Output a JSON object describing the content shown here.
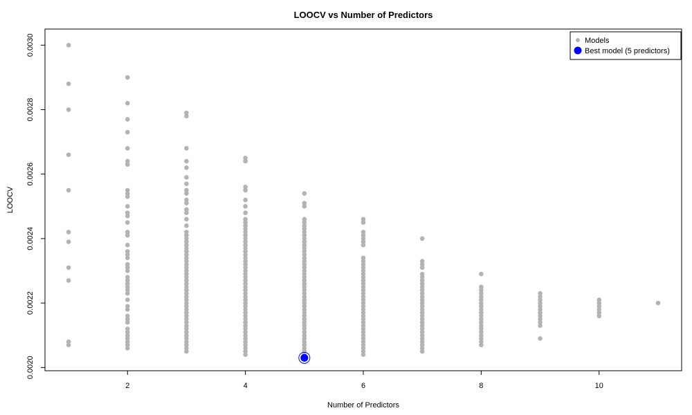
{
  "chart_data": {
    "type": "scatter",
    "title": "LOOCV vs Number of Predictors",
    "xlabel": "Number of Predictors",
    "ylabel": "LOOCV",
    "xlim": [
      0.6,
      11.4
    ],
    "ylim": [
      0.00199,
      0.00305
    ],
    "x_ticks": [
      2,
      4,
      6,
      8,
      10
    ],
    "y_ticks": [
      0.002,
      0.0022,
      0.0024,
      0.0026,
      0.0028,
      0.003
    ],
    "y_tick_labels": [
      "0.0020",
      "0.0022",
      "0.0024",
      "0.0026",
      "0.0028",
      "0.0030"
    ],
    "grid": false,
    "legend_position": "top-right",
    "series": [
      {
        "name": "Models",
        "color": "#b3b3b3",
        "points": [
          {
            "x": 1,
            "values": [
              0.003,
              0.00288,
              0.0028,
              0.00266,
              0.00255,
              0.00242,
              0.00239,
              0.00231,
              0.00227,
              0.00208,
              0.00207
            ]
          },
          {
            "x": 2,
            "values": [
              0.0029,
              0.00282,
              0.00277,
              0.00273,
              0.00268,
              0.00264,
              0.00263,
              0.00255,
              0.00254,
              0.00253,
              0.0025,
              0.00248,
              0.00247,
              0.00245,
              0.00242,
              0.00241,
              0.00238,
              0.00236,
              0.00235,
              0.00234,
              0.00232,
              0.00231,
              0.0023,
              0.00228,
              0.00227,
              0.00226,
              0.00225,
              0.00224,
              0.00223,
              0.00221,
              0.00219,
              0.00218,
              0.00216,
              0.00215,
              0.00214,
              0.00212,
              0.00211,
              0.0021,
              0.00209,
              0.00208,
              0.00207,
              0.00206
            ]
          },
          {
            "x": 3,
            "values": [
              0.00279,
              0.00278,
              0.00268,
              0.00264,
              0.00262,
              0.00259,
              0.00257,
              0.00255,
              0.00254,
              0.00252,
              0.00251,
              0.00249,
              0.00248,
              0.00246,
              0.00244,
              0.00242,
              0.00241,
              0.0024,
              0.00239,
              0.00238,
              0.00237,
              0.00236,
              0.00235,
              0.00234,
              0.00233,
              0.00232,
              0.00231,
              0.0023,
              0.00229,
              0.00228,
              0.00227,
              0.00226,
              0.00225,
              0.00224,
              0.00223,
              0.00222,
              0.00221,
              0.0022,
              0.00219,
              0.00218,
              0.00217,
              0.00216,
              0.00215,
              0.00214,
              0.00213,
              0.00212,
              0.00211,
              0.0021,
              0.00209,
              0.00208,
              0.00207,
              0.00206,
              0.00205
            ]
          },
          {
            "x": 4,
            "values": [
              0.00265,
              0.00264,
              0.00256,
              0.00255,
              0.00252,
              0.0025,
              0.00248,
              0.00246,
              0.00245,
              0.00244,
              0.00243,
              0.00242,
              0.00241,
              0.0024,
              0.00239,
              0.00238,
              0.00237,
              0.00236,
              0.00235,
              0.00234,
              0.00233,
              0.00232,
              0.00231,
              0.0023,
              0.00229,
              0.00228,
              0.00227,
              0.00226,
              0.00225,
              0.00224,
              0.00223,
              0.00222,
              0.00221,
              0.0022,
              0.00219,
              0.00218,
              0.00217,
              0.00216,
              0.00215,
              0.00214,
              0.00213,
              0.00212,
              0.00211,
              0.0021,
              0.00209,
              0.00208,
              0.00207,
              0.00206,
              0.00205,
              0.00204
            ]
          },
          {
            "x": 5,
            "values": [
              0.00254,
              0.00251,
              0.0025,
              0.00246,
              0.00245,
              0.00244,
              0.00243,
              0.00242,
              0.00241,
              0.0024,
              0.00239,
              0.00238,
              0.00237,
              0.00236,
              0.00235,
              0.00234,
              0.00233,
              0.00232,
              0.00231,
              0.0023,
              0.00229,
              0.00228,
              0.00227,
              0.00226,
              0.00225,
              0.00224,
              0.00223,
              0.00222,
              0.00221,
              0.0022,
              0.00219,
              0.00218,
              0.00217,
              0.00216,
              0.00215,
              0.00214,
              0.00213,
              0.00212,
              0.00211,
              0.0021,
              0.00209,
              0.00208,
              0.00207,
              0.00206,
              0.00205,
              0.00204
            ]
          },
          {
            "x": 6,
            "values": [
              0.00246,
              0.00245,
              0.00242,
              0.00241,
              0.0024,
              0.00239,
              0.00238,
              0.00234,
              0.00233,
              0.00232,
              0.00231,
              0.0023,
              0.00229,
              0.00228,
              0.00227,
              0.00226,
              0.00225,
              0.00224,
              0.00223,
              0.00222,
              0.00221,
              0.0022,
              0.00219,
              0.00218,
              0.00217,
              0.00216,
              0.00215,
              0.00214,
              0.00213,
              0.00212,
              0.00211,
              0.0021,
              0.00209,
              0.00208,
              0.00207,
              0.00206,
              0.00205,
              0.00204
            ]
          },
          {
            "x": 7,
            "values": [
              0.0024,
              0.00233,
              0.00232,
              0.00231,
              0.00229,
              0.00228,
              0.00227,
              0.00226,
              0.00225,
              0.00224,
              0.00223,
              0.00222,
              0.00221,
              0.0022,
              0.00219,
              0.00218,
              0.00217,
              0.00216,
              0.00215,
              0.00214,
              0.00213,
              0.00212,
              0.00211,
              0.0021,
              0.00209,
              0.00208,
              0.00207,
              0.00206,
              0.00205
            ]
          },
          {
            "x": 8,
            "values": [
              0.00229,
              0.00225,
              0.00224,
              0.00223,
              0.00222,
              0.00221,
              0.0022,
              0.00219,
              0.00218,
              0.00217,
              0.00216,
              0.00215,
              0.00214,
              0.00213,
              0.00212,
              0.00211,
              0.0021,
              0.00209,
              0.00208,
              0.00207
            ]
          },
          {
            "x": 9,
            "values": [
              0.00223,
              0.00222,
              0.00221,
              0.0022,
              0.00219,
              0.00218,
              0.00217,
              0.00216,
              0.00215,
              0.00214,
              0.00213,
              0.00209
            ]
          },
          {
            "x": 10,
            "values": [
              0.00221,
              0.0022,
              0.00219,
              0.00218,
              0.00217,
              0.00216
            ]
          },
          {
            "x": 11,
            "values": [
              0.0022
            ]
          }
        ]
      },
      {
        "name": "Best model (5 predictors)",
        "color": "#0000ff",
        "points": [
          {
            "x": 5,
            "values": [
              0.00203
            ]
          }
        ]
      }
    ]
  }
}
